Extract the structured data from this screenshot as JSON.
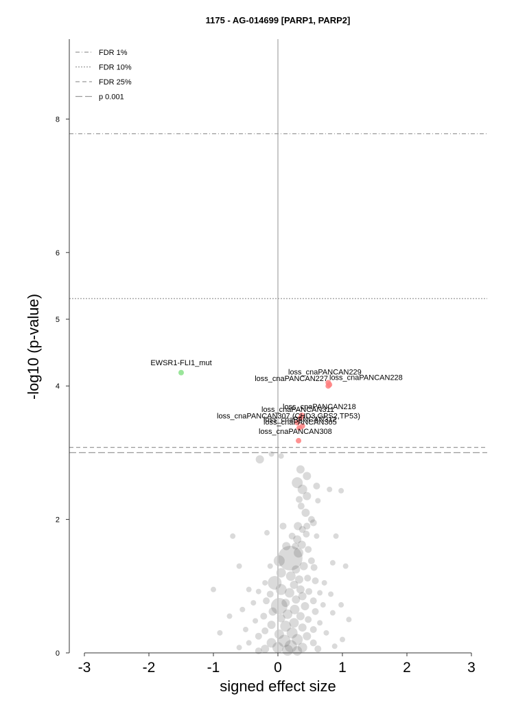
{
  "chart_data": {
    "type": "scatter",
    "title": "1175 - AG-014699 [PARP1, PARP2]",
    "xlabel": "signed effect size",
    "ylabel": "-log10 (p-value)",
    "xlim": [
      -3.2,
      3.2
    ],
    "ylim": [
      0,
      9.3
    ],
    "xticks": [
      "-3",
      "-2",
      "-1",
      "0",
      "1",
      "2",
      "3"
    ],
    "xtick_values": [
      -3,
      -2,
      -1,
      0,
      1,
      2,
      3
    ],
    "yticks": [
      "0",
      "2",
      "4",
      "5",
      "6",
      "8"
    ],
    "ytick_values": [
      0,
      2,
      4,
      5,
      6,
      8
    ],
    "grid": false,
    "legend_position": "top-left",
    "thresholds": [
      {
        "name": "FDR 1%",
        "y": 7.78,
        "style": "dashdot"
      },
      {
        "name": "FDR 10%",
        "y": 5.31,
        "style": "dotted"
      },
      {
        "name": "FDR 25%",
        "y": 3.08,
        "style": "dashed"
      },
      {
        "name": "p 0.001",
        "y": 3.0,
        "style": "longdash"
      }
    ],
    "zero_line_x": 0,
    "highlighted_points": [
      {
        "label": "EWSR1-FLI1_mut",
        "x": -1.5,
        "y": 4.2,
        "color": "#88e088"
      },
      {
        "label": "loss_cnaPANCAN229",
        "x": 0.78,
        "y": 4.05,
        "color": "#ff7f7f"
      },
      {
        "label": "loss_cnaPANCAN227",
        "x": 0.78,
        "y": 4.0,
        "color": "#ff7f7f"
      },
      {
        "label": "loss_cnaPANCAN228",
        "x": 0.8,
        "y": 4.02,
        "color": "#ff7f7f"
      },
      {
        "label": "loss_cnaPANCAN218",
        "x": 0.37,
        "y": 3.56,
        "color": "#ff7f7f"
      },
      {
        "label": "loss_cnaPANCAN311",
        "x": 0.35,
        "y": 3.52,
        "color": "#ff7f7f"
      },
      {
        "label": "loss_cnaPANCAN307 (CHD3,GPS2,TP53)",
        "x": 0.3,
        "y": 3.45,
        "color": "#ff7f7f"
      },
      {
        "label": "loss_cnaPANCAN312",
        "x": 0.38,
        "y": 3.4,
        "color": "#ff7f7f"
      },
      {
        "label": "loss_cnaPANCAN305",
        "x": 0.33,
        "y": 3.37,
        "color": "#ff7f7f"
      },
      {
        "label": "loss_cnaPANCAN308",
        "x": 0.32,
        "y": 3.18,
        "color": "#ff7f7f"
      }
    ],
    "background_points": [
      [
        -0.28,
        2.9,
        6
      ],
      [
        -0.1,
        2.98,
        4
      ],
      [
        0.05,
        2.95,
        4
      ],
      [
        0.35,
        2.75,
        6
      ],
      [
        0.45,
        2.65,
        6
      ],
      [
        0.3,
        2.55,
        8
      ],
      [
        0.38,
        2.45,
        7
      ],
      [
        0.6,
        2.5,
        5
      ],
      [
        0.8,
        2.45,
        4
      ],
      [
        0.98,
        2.43,
        4
      ],
      [
        0.45,
        2.35,
        6
      ],
      [
        0.33,
        2.3,
        5
      ],
      [
        0.62,
        2.28,
        4
      ],
      [
        0.36,
        2.2,
        5
      ],
      [
        0.43,
        2.1,
        6
      ],
      [
        0.52,
        2.0,
        5
      ],
      [
        0.55,
        1.95,
        5
      ],
      [
        0.31,
        1.9,
        6
      ],
      [
        0.38,
        1.85,
        5
      ],
      [
        0.44,
        1.78,
        5
      ],
      [
        0.6,
        1.75,
        4
      ],
      [
        0.9,
        1.75,
        4
      ],
      [
        -0.17,
        1.8,
        4
      ],
      [
        -0.7,
        1.75,
        4
      ],
      [
        0.3,
        1.7,
        6
      ],
      [
        0.37,
        1.62,
        6
      ],
      [
        0.47,
        1.55,
        5
      ],
      [
        0.27,
        1.6,
        5
      ],
      [
        0.32,
        1.5,
        7
      ],
      [
        0.19,
        1.42,
        18
      ],
      [
        0.02,
        1.38,
        8
      ],
      [
        0.52,
        1.38,
        5
      ],
      [
        0.85,
        1.35,
        4
      ],
      [
        0.4,
        1.3,
        6
      ],
      [
        -0.12,
        1.3,
        4
      ],
      [
        0.56,
        1.28,
        5
      ],
      [
        1.05,
        1.3,
        4
      ],
      [
        -0.6,
        1.3,
        4
      ],
      [
        0.28,
        1.25,
        6
      ],
      [
        0.2,
        1.15,
        7
      ],
      [
        -0.05,
        1.05,
        10
      ],
      [
        0.33,
        1.1,
        6
      ],
      [
        0.46,
        1.12,
        5
      ],
      [
        0.58,
        1.08,
        5
      ],
      [
        -0.2,
        1.05,
        4
      ],
      [
        0.72,
        1.05,
        4
      ],
      [
        0.25,
        1.02,
        6
      ],
      [
        0.05,
        0.95,
        8
      ],
      [
        0.35,
        0.95,
        6
      ],
      [
        0.48,
        0.92,
        5
      ],
      [
        0.65,
        0.9,
        4
      ],
      [
        -0.3,
        0.92,
        4
      ],
      [
        -0.45,
        0.95,
        4
      ],
      [
        0.18,
        0.9,
        7
      ],
      [
        -0.12,
        0.88,
        5
      ],
      [
        0.82,
        0.88,
        4
      ],
      [
        0.38,
        0.85,
        6
      ],
      [
        0.02,
        0.7,
        12
      ],
      [
        0.28,
        0.8,
        6
      ],
      [
        0.55,
        0.78,
        5
      ],
      [
        -0.18,
        0.78,
        5
      ],
      [
        0.12,
        0.75,
        6
      ],
      [
        -0.38,
        0.75,
        4
      ],
      [
        0.7,
        0.72,
        4
      ],
      [
        0.98,
        0.72,
        4
      ],
      [
        0.42,
        0.7,
        6
      ],
      [
        0.26,
        0.65,
        7
      ],
      [
        -0.08,
        0.62,
        6
      ],
      [
        -0.55,
        0.65,
        4
      ],
      [
        0.58,
        0.62,
        5
      ],
      [
        0.15,
        0.58,
        7
      ],
      [
        0.85,
        0.6,
        4
      ],
      [
        0.35,
        0.55,
        6
      ],
      [
        -0.22,
        0.55,
        5
      ],
      [
        0.05,
        0.52,
        6
      ],
      [
        0.47,
        0.5,
        5
      ],
      [
        0.25,
        0.45,
        7
      ],
      [
        -0.35,
        0.48,
        4
      ],
      [
        0.65,
        0.45,
        4
      ],
      [
        -0.1,
        0.42,
        6
      ],
      [
        0.12,
        0.4,
        8
      ],
      [
        0.38,
        0.38,
        6
      ],
      [
        0.55,
        0.35,
        5
      ],
      [
        -0.5,
        0.35,
        4
      ],
      [
        -0.2,
        0.33,
        5
      ],
      [
        0.22,
        0.3,
        8
      ],
      [
        0.02,
        0.28,
        7
      ],
      [
        0.75,
        0.3,
        4
      ],
      [
        0.45,
        0.25,
        6
      ],
      [
        -0.3,
        0.25,
        5
      ],
      [
        0.3,
        0.2,
        8
      ],
      [
        0.1,
        0.18,
        9
      ],
      [
        -0.1,
        0.15,
        7
      ],
      [
        0.55,
        0.15,
        5
      ],
      [
        -0.45,
        0.15,
        4
      ],
      [
        0.2,
        0.1,
        9
      ],
      [
        0.38,
        0.08,
        7
      ],
      [
        0.0,
        0.08,
        8
      ],
      [
        -0.2,
        0.06,
        6
      ],
      [
        0.62,
        0.06,
        5
      ],
      [
        0.15,
        0.04,
        8
      ],
      [
        0.3,
        0.03,
        7
      ],
      [
        -0.3,
        0.03,
        5
      ],
      [
        -0.9,
        0.3,
        4
      ],
      [
        -1.0,
        0.95,
        4
      ],
      [
        -0.75,
        0.55,
        4
      ],
      [
        1.1,
        0.5,
        4
      ],
      [
        1.0,
        0.2,
        4
      ],
      [
        -0.6,
        0.08,
        4
      ],
      [
        0.88,
        0.1,
        4
      ],
      [
        0.08,
        1.9,
        5
      ],
      [
        0.13,
        1.6,
        6
      ],
      [
        0.45,
        1.9,
        5
      ],
      [
        0.22,
        1.75,
        5
      ],
      [
        0.05,
        1.2,
        7
      ]
    ]
  }
}
